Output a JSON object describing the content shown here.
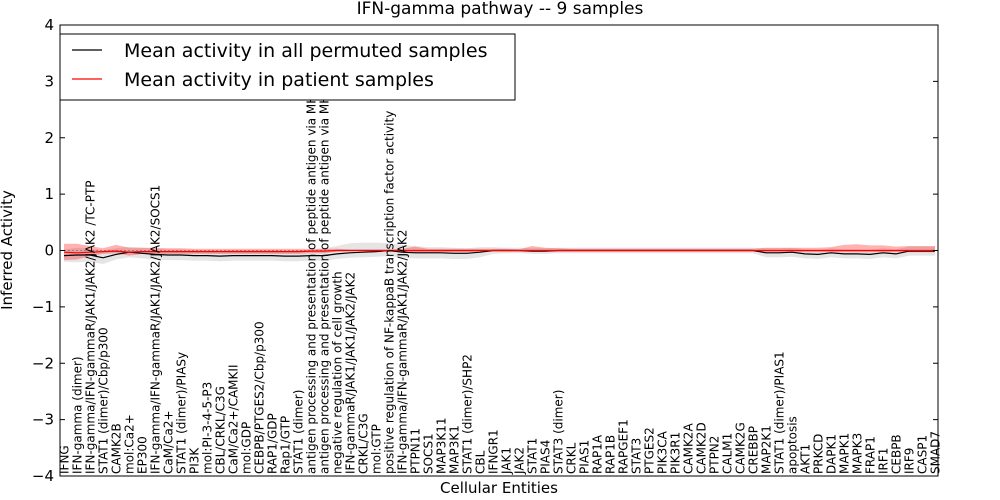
{
  "chart_data": {
    "type": "line",
    "title": "IFN-gamma pathway -- 9 samples",
    "xlabel": "Cellular Entities",
    "ylabel": "Inferred Activity",
    "ylim": [
      -4,
      4
    ],
    "yticks": [
      -4,
      -3,
      -2,
      -1,
      0,
      1,
      2,
      3,
      4
    ],
    "grid": false,
    "legend_position": "top-left",
    "categories": [
      "IFNG",
      "IFN-gamma (dimer)",
      "IFN-gamma/IFN-gammaR/JAK1/JAK2/JAK2 /TC-PTP",
      "STAT1 (dimer)/Cbp/p300",
      "CAMK2B",
      "mol:Ca2+",
      "EP300",
      "IFN-gamma/IFN-gammaR/JAK1/JAK2/JAK2/SOCS1",
      "CaM/Ca2+",
      "STAT1 (dimer)/PIASy",
      "PI3K",
      "mol:PI-3-4-5-P3",
      "CBL/CRKL/C3G",
      "CaM/Ca2+/CAMKII",
      "mol:GDP",
      "CEBPB/PTGES2/Cbp/p300",
      "RAP1/GDP",
      "Rap1/GTP",
      "STAT1 (dimer)",
      "antigen processing and presentation of peptide antigen via MHC class I",
      "antigen processing and presentation of peptide antigen via MHC class II",
      "negative regulation of cell growth",
      "IFN-gammaR/JAK1/JAK1/JAK2/JAK2",
      "CRKL/C3G",
      "mol:GTP",
      "positive regulation of NF-kappaB transcription factor activity",
      "IFN-gamma/IFN-gammaR/JAK1/JAK2/JAK2",
      "PTPN11",
      "SOCS1",
      "MAP3K11",
      "MAP3K1",
      "STAT1 (dimer)/SHP2",
      "CBL",
      "IFNGR1",
      "JAK1",
      "JAK2",
      "STAT1",
      "PIAS4",
      "STAT3 (dimer)",
      "CRKL",
      "PIAS1",
      "RAP1A",
      "RAP1B",
      "RAPGEF1",
      "STAT3",
      "PTGES2",
      "PIK3CA",
      "PIK3R1",
      "CAMK2A",
      "CAMK2D",
      "PTPN2",
      "CALM1",
      "CAMK2G",
      "CREBBP",
      "MAP2K1",
      "STAT1 (dimer)/PIAS1",
      "apoptosis",
      "AKT1",
      "PRKCD",
      "DAPK1",
      "MAPK1",
      "MAPK3",
      "FRAP1",
      "IRF1",
      "CEBPB",
      "IRF9",
      "CASP1",
      "SMAD7"
    ],
    "series": [
      {
        "name": "Mean activity in all permuted samples",
        "color": "#000000",
        "values": [
          -0.09,
          -0.08,
          -0.08,
          -0.13,
          -0.07,
          -0.03,
          -0.05,
          -0.07,
          -0.08,
          -0.08,
          -0.09,
          -0.09,
          -0.1,
          -0.09,
          -0.09,
          -0.09,
          -0.09,
          -0.1,
          -0.1,
          -0.09,
          -0.09,
          -0.06,
          -0.04,
          -0.03,
          -0.02,
          0.0,
          -0.03,
          -0.04,
          -0.04,
          -0.04,
          -0.05,
          -0.05,
          -0.03,
          0.0,
          0.0,
          0.0,
          -0.01,
          -0.01,
          0.0,
          0.0,
          0.0,
          0.0,
          0.0,
          0.0,
          0.0,
          0.0,
          0.0,
          0.0,
          0.0,
          0.0,
          0.0,
          0.0,
          0.0,
          0.0,
          -0.04,
          -0.04,
          -0.03,
          -0.06,
          -0.07,
          -0.04,
          -0.06,
          -0.06,
          -0.07,
          -0.04,
          -0.06,
          -0.01,
          -0.01,
          -0.01
        ],
        "band_lower": [
          -0.2,
          -0.21,
          -0.2,
          -0.24,
          -0.16,
          -0.12,
          -0.14,
          -0.16,
          -0.17,
          -0.17,
          -0.18,
          -0.18,
          -0.19,
          -0.18,
          -0.18,
          -0.18,
          -0.18,
          -0.19,
          -0.19,
          -0.18,
          -0.18,
          -0.15,
          -0.13,
          -0.12,
          -0.11,
          -0.1,
          -0.13,
          -0.14,
          -0.14,
          -0.14,
          -0.15,
          -0.15,
          -0.12,
          -0.06,
          -0.05,
          -0.05,
          -0.06,
          -0.06,
          -0.05,
          -0.05,
          -0.05,
          -0.05,
          -0.05,
          -0.05,
          -0.05,
          -0.05,
          -0.05,
          -0.05,
          -0.05,
          -0.05,
          -0.05,
          -0.05,
          -0.05,
          -0.05,
          -0.12,
          -0.12,
          -0.11,
          -0.14,
          -0.15,
          -0.12,
          -0.14,
          -0.14,
          -0.15,
          -0.12,
          -0.14,
          -0.09,
          -0.09,
          -0.09
        ],
        "band_upper": [
          0.02,
          0.05,
          0.04,
          0.0,
          0.04,
          0.07,
          0.05,
          0.03,
          0.02,
          0.02,
          0.01,
          0.01,
          0.0,
          0.01,
          0.01,
          0.01,
          0.01,
          0.0,
          0.0,
          0.01,
          0.04,
          0.08,
          0.13,
          0.14,
          0.14,
          0.13,
          0.1,
          0.08,
          0.06,
          0.06,
          0.05,
          0.04,
          0.06,
          0.06,
          0.05,
          0.05,
          0.04,
          0.04,
          0.05,
          0.05,
          0.05,
          0.05,
          0.05,
          0.05,
          0.05,
          0.05,
          0.05,
          0.05,
          0.05,
          0.05,
          0.05,
          0.05,
          0.05,
          0.05,
          0.04,
          0.04,
          0.05,
          0.02,
          0.01,
          0.04,
          0.02,
          0.02,
          0.01,
          0.04,
          0.02,
          0.07,
          0.07,
          0.07
        ]
      },
      {
        "name": "Mean activity in patient samples",
        "color": "#ff0000",
        "values": [
          -0.03,
          -0.04,
          -0.03,
          -0.02,
          -0.01,
          -0.03,
          -0.02,
          -0.02,
          -0.02,
          -0.02,
          -0.02,
          -0.02,
          -0.02,
          -0.02,
          -0.02,
          -0.02,
          -0.02,
          -0.02,
          -0.02,
          -0.01,
          -0.01,
          0.0,
          0.0,
          0.0,
          0.0,
          0.0,
          0.0,
          0.0,
          0.0,
          0.0,
          0.0,
          0.0,
          0.0,
          0.0,
          0.0,
          0.0,
          0.0,
          0.0,
          0.0,
          0.0,
          0.0,
          0.0,
          0.0,
          0.0,
          0.0,
          0.0,
          0.0,
          0.0,
          0.0,
          0.0,
          0.0,
          0.0,
          0.0,
          0.0,
          0.0,
          0.0,
          0.0,
          0.0,
          0.0,
          0.0,
          0.0,
          0.0,
          0.0,
          0.0,
          0.0,
          0.0,
          0.0,
          0.0
        ],
        "band_lower": [
          -0.17,
          -0.16,
          -0.1,
          -0.06,
          -0.05,
          -0.09,
          -0.06,
          -0.06,
          -0.06,
          -0.06,
          -0.06,
          -0.06,
          -0.06,
          -0.06,
          -0.06,
          -0.06,
          -0.06,
          -0.06,
          -0.06,
          -0.05,
          -0.05,
          -0.02,
          -0.01,
          -0.01,
          -0.01,
          -0.01,
          -0.03,
          -0.04,
          -0.04,
          -0.03,
          -0.03,
          -0.03,
          -0.02,
          -0.02,
          -0.02,
          -0.02,
          -0.02,
          -0.02,
          -0.02,
          -0.02,
          -0.02,
          -0.02,
          -0.02,
          -0.02,
          -0.02,
          -0.02,
          -0.02,
          -0.02,
          -0.02,
          -0.02,
          -0.02,
          -0.02,
          -0.02,
          -0.02,
          -0.03,
          -0.03,
          -0.03,
          -0.03,
          -0.03,
          -0.03,
          -0.03,
          -0.03,
          -0.03,
          -0.03,
          -0.03,
          -0.03,
          -0.03,
          -0.03
        ],
        "band_upper": [
          0.12,
          0.12,
          0.08,
          0.04,
          0.1,
          0.05,
          0.05,
          0.05,
          0.04,
          0.04,
          0.03,
          0.03,
          0.03,
          0.03,
          0.03,
          0.03,
          0.03,
          0.03,
          0.03,
          0.03,
          0.03,
          0.03,
          0.02,
          0.02,
          0.02,
          0.02,
          0.03,
          0.07,
          0.03,
          0.03,
          0.03,
          0.03,
          0.03,
          0.03,
          0.03,
          0.02,
          0.08,
          0.05,
          0.04,
          0.03,
          0.03,
          0.03,
          0.03,
          0.03,
          0.03,
          0.03,
          0.03,
          0.03,
          0.03,
          0.03,
          0.03,
          0.03,
          0.03,
          0.03,
          0.05,
          0.05,
          0.05,
          0.05,
          0.05,
          0.06,
          0.1,
          0.11,
          0.09,
          0.09,
          0.07,
          0.08,
          0.08,
          0.08
        ]
      }
    ]
  }
}
